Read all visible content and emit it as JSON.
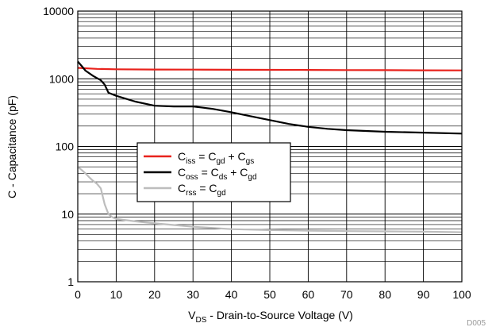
{
  "chart_data": {
    "type": "line",
    "xlabel": {
      "prefix": "V",
      "sub": "DS",
      "rest": " - Drain-to-Source Voltage (V)"
    },
    "ylabel": "C - Capacitance (pF)",
    "xlim": [
      0,
      100
    ],
    "ylim": [
      1,
      10000
    ],
    "yscale": "log",
    "x_ticks": [
      0,
      10,
      20,
      30,
      40,
      50,
      60,
      70,
      80,
      90,
      100
    ],
    "y_ticks": [
      1,
      10,
      100,
      1000,
      10000
    ],
    "grid": true,
    "legend_position": "center-left",
    "series": [
      {
        "name": "Ciss = Cgd + Cgs",
        "legend": [
          {
            "t": "C",
            "sub": false
          },
          {
            "t": "iss",
            "sub": true
          },
          {
            "t": " = C",
            "sub": false
          },
          {
            "t": "gd",
            "sub": true
          },
          {
            "t": " + C",
            "sub": false
          },
          {
            "t": "gs",
            "sub": true
          }
        ],
        "color": "#e8221c",
        "x": [
          0,
          5,
          10,
          20,
          30,
          40,
          50,
          60,
          70,
          80,
          90,
          100
        ],
        "y": [
          1450,
          1400,
          1380,
          1370,
          1365,
          1360,
          1355,
          1350,
          1345,
          1340,
          1335,
          1330
        ]
      },
      {
        "name": "Coss = Cds + Cgd",
        "legend": [
          {
            "t": "C",
            "sub": false
          },
          {
            "t": "oss",
            "sub": true
          },
          {
            "t": " = C",
            "sub": false
          },
          {
            "t": "ds",
            "sub": true
          },
          {
            "t": " + C",
            "sub": false
          },
          {
            "t": "gd",
            "sub": true
          }
        ],
        "color": "#000000",
        "x": [
          0,
          1,
          2,
          4,
          6,
          7,
          8,
          10,
          15,
          20,
          25,
          30,
          35,
          40,
          45,
          50,
          55,
          60,
          65,
          70,
          80,
          90,
          100
        ],
        "y": [
          1800,
          1550,
          1320,
          1100,
          950,
          820,
          620,
          560,
          460,
          400,
          390,
          390,
          360,
          320,
          280,
          245,
          215,
          195,
          182,
          174,
          165,
          160,
          155
        ]
      },
      {
        "name": "Crss = Cgd",
        "legend": [
          {
            "t": "C",
            "sub": false
          },
          {
            "t": "rss",
            "sub": true
          },
          {
            "t": " = C",
            "sub": false
          },
          {
            "t": "gd",
            "sub": true
          }
        ],
        "color": "#bdbdbd",
        "x": [
          0,
          1,
          2,
          3,
          4,
          5,
          6,
          7,
          8,
          9,
          10,
          15,
          20,
          25,
          30,
          40,
          50,
          60,
          70,
          80,
          90,
          100
        ],
        "y": [
          50,
          45,
          40,
          35,
          31,
          28,
          24,
          14,
          10,
          9,
          8.5,
          7.8,
          7.3,
          6.9,
          6.5,
          6.0,
          5.8,
          5.7,
          5.6,
          5.55,
          5.5,
          5.4
        ]
      }
    ],
    "figure_tag": "D005"
  }
}
